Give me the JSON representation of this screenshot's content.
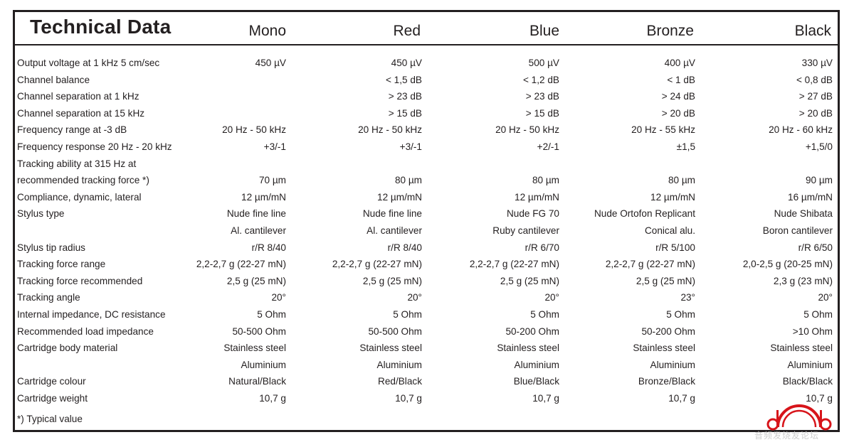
{
  "title": "Technical Data",
  "columns": [
    "Mono",
    "Red",
    "Blue",
    "Bronze",
    "Black"
  ],
  "rows": [
    {
      "label": "Output voltage at 1 kHz 5 cm/sec",
      "values": [
        "450 µV",
        "450 µV",
        "500 µV",
        "400 µV",
        "330 µV"
      ]
    },
    {
      "label": "Channel balance",
      "values": [
        "",
        "< 1,5 dB",
        "< 1,2 dB",
        "< 1 dB",
        "< 0,8 dB"
      ]
    },
    {
      "label": "Channel separation at 1 kHz",
      "values": [
        "",
        "> 23 dB",
        "> 23 dB",
        "> 24 dB",
        "> 27 dB"
      ]
    },
    {
      "label": "Channel separation at 15 kHz",
      "values": [
        "",
        "> 15 dB",
        "> 15 dB",
        "> 20 dB",
        "> 20 dB"
      ]
    },
    {
      "label": "Frequency range at -3 dB",
      "values": [
        "20 Hz - 50 kHz",
        "20 Hz - 50 kHz",
        "20 Hz - 50 kHz",
        "20 Hz - 55 kHz",
        "20 Hz - 60 kHz"
      ]
    },
    {
      "label": "Frequency response 20 Hz - 20 kHz",
      "values": [
        "+3/-1",
        "+3/-1",
        "+2/-1",
        "±1,5",
        "+1,5/0"
      ]
    },
    {
      "label": "Tracking ability at 315 Hz at",
      "values": [
        "",
        "",
        "",
        "",
        ""
      ]
    },
    {
      "label": "recommended tracking force *)",
      "values": [
        "70 µm",
        "80 µm",
        "80 µm",
        "80 µm",
        "90 µm"
      ]
    },
    {
      "label": "Compliance, dynamic, lateral",
      "values": [
        "12 µm/mN",
        "12 µm/mN",
        "12 µm/mN",
        "12 µm/mN",
        "16 µm/mN"
      ]
    },
    {
      "label": "Stylus type",
      "values": [
        "Nude fine line",
        "Nude fine line",
        "Nude FG 70",
        "Nude Ortofon Replicant",
        "Nude Shibata"
      ]
    },
    {
      "label": "",
      "values": [
        "Al. cantilever",
        "Al. cantilever",
        "Ruby cantilever",
        "Conical alu.",
        "Boron cantilever"
      ]
    },
    {
      "label": "Stylus tip radius",
      "values": [
        "r/R 8/40",
        "r/R 8/40",
        "r/R 6/70",
        "r/R 5/100",
        "r/R 6/50"
      ]
    },
    {
      "label": "Tracking force range",
      "values": [
        "2,2-2,7 g (22-27 mN)",
        "2,2-2,7 g (22-27 mN)",
        "2,2-2,7 g (22-27 mN)",
        "2,2-2,7 g (22-27 mN)",
        "2,0-2,5 g (20-25 mN)"
      ]
    },
    {
      "label": "Tracking force recommended",
      "values": [
        "2,5 g (25 mN)",
        "2,5 g (25 mN)",
        "2,5 g (25 mN)",
        "2,5 g (25 mN)",
        "2,3 g (23 mN)"
      ]
    },
    {
      "label": "Tracking angle",
      "values": [
        "20°",
        "20°",
        "20°",
        "23°",
        "20°"
      ]
    },
    {
      "label": "Internal impedance, DC resistance",
      "values": [
        "5 Ohm",
        "5 Ohm",
        "5 Ohm",
        "5 Ohm",
        "5 Ohm"
      ]
    },
    {
      "label": "Recommended load impedance",
      "values": [
        "50-500 Ohm",
        "50-500 Ohm",
        "50-200 Ohm",
        "50-200 Ohm",
        ">10 Ohm"
      ]
    },
    {
      "label": "Cartridge body material",
      "values": [
        "Stainless steel",
        "Stainless steel",
        "Stainless steel",
        "Stainless steel",
        "Stainless steel"
      ]
    },
    {
      "label": "",
      "values": [
        "Aluminium",
        "Aluminium",
        "Aluminium",
        "Aluminium",
        "Aluminium"
      ]
    },
    {
      "label": "Cartridge colour",
      "values": [
        "Natural/Black",
        "Red/Black",
        "Blue/Black",
        "Bronze/Black",
        "Black/Black"
      ]
    },
    {
      "label": "Cartridge weight",
      "values": [
        "10,7 g",
        "10,7 g",
        "10,7 g",
        "10,7 g",
        "10,7 g"
      ]
    }
  ],
  "footnote": "*) Typical value",
  "watermark": {
    "logo_letters": "d b",
    "text": "音频发烧友论坛",
    "accent_color": "#d7141a"
  }
}
